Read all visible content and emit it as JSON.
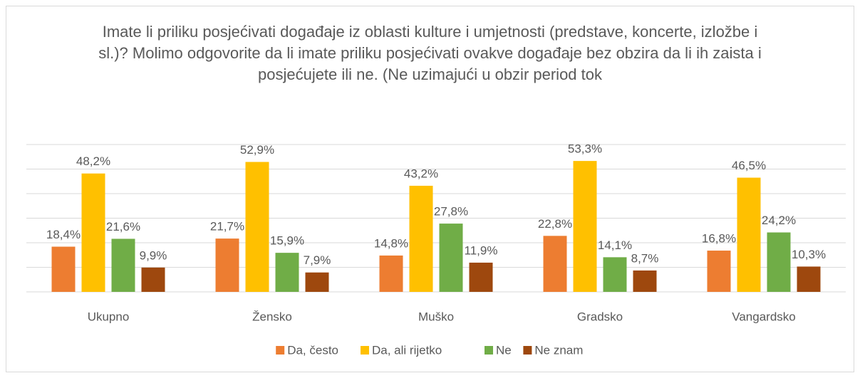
{
  "chart_data": {
    "type": "bar",
    "title": "Imate li priliku posjećivati događaje iz oblasti kulture i umjetnosti (predstave, koncerte, izložbe i sl.)? Molimo odgovorite da li imate priliku posjećivati ovakve događaje bez obzira da li ih zaista i posjećujete ili ne. (Ne uzimajući u obzir period tok",
    "categories": [
      "Ukupno",
      "Žensko",
      "Muško",
      "Gradsko",
      "Vangardsko"
    ],
    "series": [
      {
        "name": "Da, često",
        "color": "#ED7D31",
        "values": [
          18.4,
          21.7,
          14.8,
          22.8,
          16.8
        ],
        "value_labels": [
          "18,4%",
          "21,7%",
          "14,8%",
          "22,8%",
          "16,8%"
        ]
      },
      {
        "name": "Da, ali rijetko",
        "color": "#FFC000",
        "values": [
          48.2,
          52.9,
          43.2,
          53.3,
          46.5
        ],
        "value_labels": [
          "48,2%",
          "52,9%",
          "43,2%",
          "53,3%",
          "46,5%"
        ]
      },
      {
        "name": "Ne",
        "color": "#70AD47",
        "values": [
          21.6,
          15.9,
          27.8,
          14.1,
          24.2
        ],
        "value_labels": [
          "21,6%",
          "15,9%",
          "27,8%",
          "14,1%",
          "24,2%"
        ]
      },
      {
        "name": "Ne znam",
        "color": "#9E480E",
        "values": [
          9.9,
          7.9,
          11.9,
          8.7,
          10.3
        ],
        "value_labels": [
          "9,9%",
          "7,9%",
          "11,9%",
          "8,7%",
          "10,3%"
        ]
      }
    ],
    "ylim": [
      0,
      60
    ],
    "yticks": [
      0,
      10,
      20,
      30,
      40,
      50,
      60
    ],
    "grid": true,
    "legend": "bottom"
  }
}
